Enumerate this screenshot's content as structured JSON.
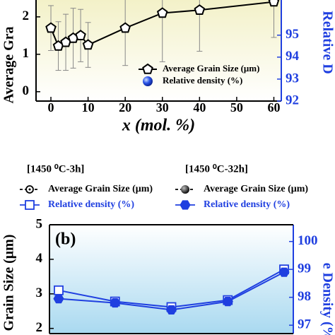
{
  "chart_data": [
    {
      "type": "line",
      "xlabel": "x (mol. %)",
      "ylabel": "Average Gra",
      "y2label": "Relative D",
      "xlim": [
        -4,
        62
      ],
      "xticks": [
        0,
        10,
        20,
        30,
        40,
        50,
        60
      ],
      "ylim": [
        -0.25,
        2.45
      ],
      "yticks": [
        0,
        1,
        2
      ],
      "y2lim": [
        92,
        96.6
      ],
      "y2ticks": [
        92,
        93,
        94,
        95
      ],
      "x": [
        0,
        2,
        4,
        6,
        8,
        10,
        20,
        30,
        40,
        60
      ],
      "series": [
        {
          "name": "Average Grain Size (μm)",
          "color": "#000000",
          "marker": "pentagon",
          "values": [
            1.7,
            1.22,
            1.32,
            1.43,
            1.5,
            1.25,
            1.7,
            2.1,
            2.18,
            2.4
          ],
          "errors": [
            0.6,
            0.65,
            0.75,
            0.8,
            0.7,
            0.6,
            1.0,
            1.3,
            1.1,
            0.95
          ]
        },
        {
          "name": "Relative density (%)",
          "color": "#1f3fe0",
          "marker": "sphere"
        }
      ]
    },
    {
      "type": "line",
      "panel_label": "(b)",
      "ylabel": "Grain Size (μm)",
      "y2label": "e Density (%)",
      "legend_groups": [
        "[1450 ⁰C-3h]",
        "[1450 ⁰C-32h]"
      ],
      "categories": [
        null,
        null,
        null,
        null,
        null
      ],
      "ylim": [
        1.85,
        5
      ],
      "yticks": [
        2,
        3,
        4,
        5
      ],
      "y2lim": [
        96.7,
        100.6
      ],
      "y2ticks": [
        97,
        98,
        99,
        100
      ],
      "series": [
        {
          "name": "Average Grain Size (μm)",
          "color": "#000000",
          "marker": "open-circle",
          "group": 0
        },
        {
          "name": "Relative density (%)",
          "color": "#1f3fe0",
          "marker": "square",
          "axis": "y2",
          "group": 0,
          "values": [
            98.25,
            97.85,
            97.65,
            97.9,
            99.0
          ]
        },
        {
          "name": "Average Grain Size (μm)",
          "color": "#000000",
          "marker": "filled-circle",
          "group": 1
        },
        {
          "name": "Relative density (%)",
          "color": "#1f3fe0",
          "marker": "hexagon",
          "axis": "y2",
          "group": 1,
          "values": [
            97.95,
            97.8,
            97.55,
            97.85,
            98.9
          ]
        }
      ]
    }
  ]
}
